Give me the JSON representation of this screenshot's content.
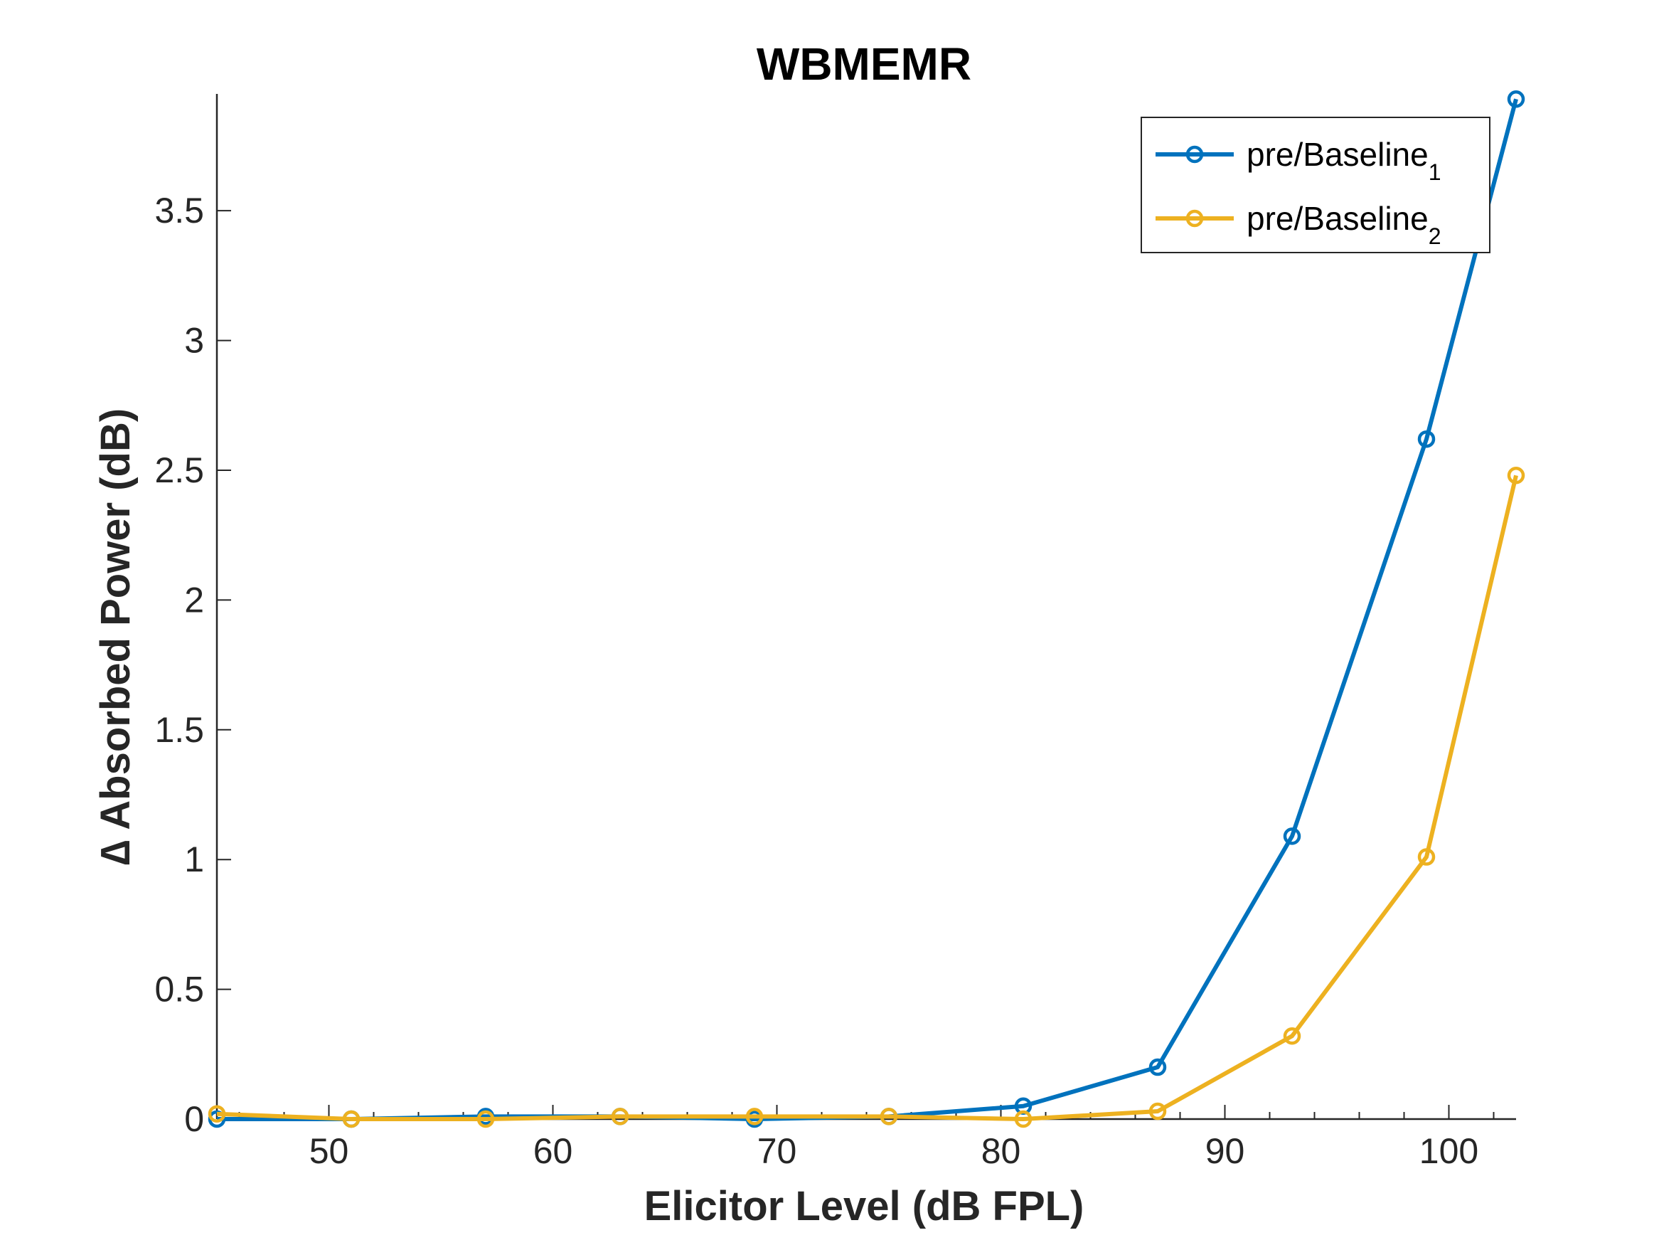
{
  "chart_data": {
    "type": "line",
    "title": "WBMEMR",
    "xlabel": "Elicitor Level (dB FPL)",
    "ylabel": "∆  Absorbed Power (dB)",
    "xlim": [
      45,
      103
    ],
    "ylim": [
      0,
      3.95
    ],
    "xticks": [
      50,
      60,
      70,
      80,
      90,
      100
    ],
    "yticks": [
      0,
      0.5,
      1,
      1.5,
      2,
      2.5,
      3,
      3.5
    ],
    "ytick_labels": [
      "0",
      "0.5",
      "1",
      "1.5",
      "2",
      "2.5",
      "3",
      "3.5"
    ],
    "grid": false,
    "legend_position": "top-right",
    "series": [
      {
        "name": "pre/Baseline",
        "name_subscript": "1",
        "color": "#0072BD",
        "marker": "circle",
        "x": [
          45,
          51,
          57,
          63,
          69,
          75,
          81,
          87,
          93,
          99,
          103
        ],
        "y": [
          0.0,
          0.0,
          0.01,
          0.01,
          0.0,
          0.01,
          0.05,
          0.2,
          1.09,
          2.62,
          3.93
        ]
      },
      {
        "name": "pre/Baseline",
        "name_subscript": "2",
        "color": "#EDB120",
        "marker": "circle",
        "x": [
          45,
          51,
          57,
          63,
          69,
          75,
          81,
          87,
          93,
          99,
          103
        ],
        "y": [
          0.02,
          0.0,
          0.0,
          0.01,
          0.01,
          0.01,
          0.0,
          0.03,
          0.32,
          1.01,
          2.48
        ]
      }
    ]
  }
}
